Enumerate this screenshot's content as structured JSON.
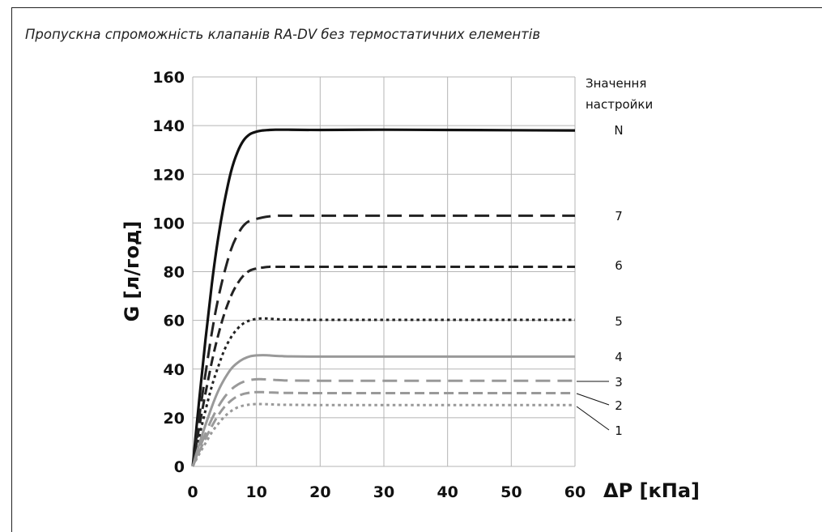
{
  "title": "Пропускна спроможність клапанів RA-DV без термостатичних елементів",
  "chart_data": {
    "type": "line",
    "title": "Пропускна спроможність клапанів RA-DV без термостатичних елементів",
    "xlabel": "ΔP [кПа]",
    "ylabel": "G [л/год]",
    "xlim": [
      0,
      60
    ],
    "ylim": [
      0,
      160
    ],
    "xticks": [
      "0",
      "10",
      "20",
      "30",
      "40",
      "50",
      "60"
    ],
    "yticks": [
      "0",
      "20",
      "40",
      "60",
      "80",
      "100",
      "120",
      "140",
      "160"
    ],
    "grid": true,
    "legend_title": [
      "Значення",
      "настройки"
    ],
    "x": [
      0,
      1,
      2,
      3,
      4,
      5,
      6,
      7,
      8,
      9,
      10,
      11,
      12,
      13,
      14,
      15,
      20,
      30,
      40,
      50,
      60
    ],
    "series": [
      {
        "name": "N",
        "color": "#111111",
        "dash": "solid",
        "width": 3.2,
        "values": [
          0,
          27,
          52,
          75,
          94,
          109,
          121,
          129,
          134,
          136.5,
          137.5,
          138,
          138.2,
          138.3,
          138.3,
          138.3,
          138.2,
          138.3,
          138.2,
          138.1,
          138
        ]
      },
      {
        "name": "7",
        "color": "#222222",
        "dash": "dash-long",
        "width": 3,
        "values": [
          0,
          20,
          38,
          55,
          69,
          80,
          89,
          95,
          99,
          101,
          101.7,
          102.3,
          102.7,
          103,
          103,
          103,
          103,
          103,
          103,
          103,
          103
        ]
      },
      {
        "name": "6",
        "color": "#222222",
        "dash": "dash",
        "width": 3,
        "values": [
          0,
          16,
          30,
          43,
          54,
          63,
          70,
          75,
          78.5,
          80.5,
          81.3,
          81.7,
          82,
          82,
          82,
          82,
          82,
          82,
          82,
          82,
          82
        ]
      },
      {
        "name": "5",
        "color": "#222222",
        "dash": "dot",
        "width": 3,
        "values": [
          0,
          12,
          23,
          33,
          41,
          48,
          53,
          56.5,
          58.8,
          60,
          60.6,
          60.8,
          60.7,
          60.5,
          60.4,
          60.3,
          60.2,
          60.2,
          60.2,
          60.2,
          60.2
        ]
      },
      {
        "name": "4",
        "color": "#999999",
        "dash": "solid",
        "width": 3,
        "values": [
          0,
          9,
          17,
          24.5,
          31,
          36,
          40,
          42.5,
          44.2,
          45.2,
          45.6,
          45.7,
          45.6,
          45.4,
          45.3,
          45.2,
          45.1,
          45.1,
          45.1,
          45.1,
          45.1
        ]
      },
      {
        "name": "3",
        "color": "#999999",
        "dash": "dash-long",
        "width": 3,
        "values": [
          0,
          7,
          13.5,
          19.5,
          24.5,
          28.5,
          31.5,
          33.5,
          34.8,
          35.5,
          35.8,
          35.8,
          35.7,
          35.5,
          35.4,
          35.3,
          35.2,
          35.2,
          35.2,
          35.2,
          35.2
        ]
      },
      {
        "name": "2",
        "color": "#999999",
        "dash": "dash",
        "width": 3,
        "values": [
          0,
          6,
          11.5,
          16.5,
          21,
          24.5,
          27,
          28.8,
          29.8,
          30.3,
          30.5,
          30.5,
          30.4,
          30.3,
          30.2,
          30.2,
          30.1,
          30.1,
          30.1,
          30.1,
          30.1
        ]
      },
      {
        "name": "1",
        "color": "#999999",
        "dash": "dot",
        "width": 3,
        "values": [
          0,
          5,
          9.5,
          14,
          17.5,
          20.5,
          22.7,
          24.2,
          25,
          25.4,
          25.6,
          25.6,
          25.5,
          25.4,
          25.3,
          25.3,
          25.2,
          25.2,
          25.2,
          25.2,
          25.2
        ]
      }
    ]
  }
}
